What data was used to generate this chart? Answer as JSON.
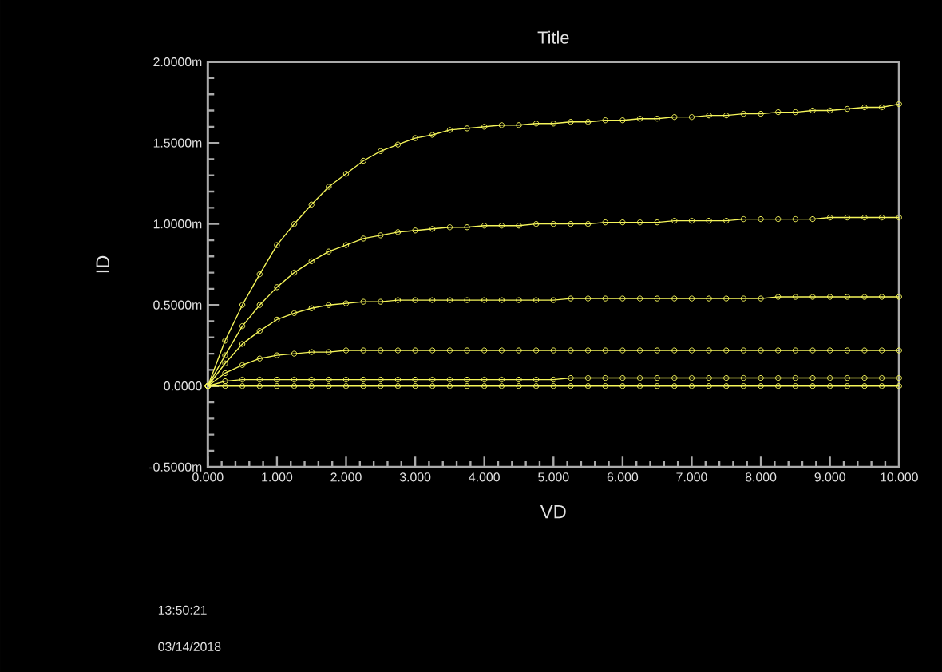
{
  "chart_data": {
    "type": "line",
    "title": "Title",
    "xlabel": "VD",
    "ylabel": "ID",
    "annotations": [
      "13:50:21",
      "03/14/2018"
    ],
    "x": [
      0,
      0.25,
      0.5,
      0.75,
      1,
      1.25,
      1.5,
      1.75,
      2,
      2.25,
      2.5,
      2.75,
      3,
      3.25,
      3.5,
      3.75,
      4,
      4.25,
      4.5,
      4.75,
      5,
      5.25,
      5.5,
      5.75,
      6,
      6.25,
      6.5,
      6.75,
      7,
      7.25,
      7.5,
      7.75,
      8,
      8.25,
      8.5,
      8.75,
      9,
      9.25,
      9.5,
      9.75,
      10
    ],
    "series": [
      {
        "color": "#f5f55a",
        "values": [
          0,
          0,
          0,
          0,
          0,
          0,
          0,
          0,
          0,
          0,
          0,
          0,
          0,
          0,
          0,
          0,
          0,
          0,
          0,
          0,
          0,
          0,
          0,
          0,
          0,
          0,
          0,
          0,
          0,
          0,
          0,
          0,
          0,
          0,
          0,
          0,
          0,
          0,
          0,
          0,
          0
        ]
      },
      {
        "color": "#f5f55a",
        "values": [
          0,
          0.03,
          0.04,
          0.04,
          0.04,
          0.04,
          0.04,
          0.04,
          0.04,
          0.04,
          0.04,
          0.04,
          0.04,
          0.04,
          0.04,
          0.04,
          0.04,
          0.04,
          0.04,
          0.04,
          0.04,
          0.05,
          0.05,
          0.05,
          0.05,
          0.05,
          0.05,
          0.05,
          0.05,
          0.05,
          0.05,
          0.05,
          0.05,
          0.05,
          0.05,
          0.05,
          0.05,
          0.05,
          0.05,
          0.05,
          0.05
        ]
      },
      {
        "color": "#f5f55a",
        "values": [
          0,
          0.08,
          0.13,
          0.17,
          0.19,
          0.2,
          0.21,
          0.21,
          0.22,
          0.22,
          0.22,
          0.22,
          0.22,
          0.22,
          0.22,
          0.22,
          0.22,
          0.22,
          0.22,
          0.22,
          0.22,
          0.22,
          0.22,
          0.22,
          0.22,
          0.22,
          0.22,
          0.22,
          0.22,
          0.22,
          0.22,
          0.22,
          0.22,
          0.22,
          0.22,
          0.22,
          0.22,
          0.22,
          0.22,
          0.22,
          0.22
        ]
      },
      {
        "color": "#f5f55a",
        "values": [
          0,
          0.14,
          0.26,
          0.34,
          0.41,
          0.45,
          0.48,
          0.5,
          0.51,
          0.52,
          0.52,
          0.53,
          0.53,
          0.53,
          0.53,
          0.53,
          0.53,
          0.53,
          0.53,
          0.53,
          0.53,
          0.54,
          0.54,
          0.54,
          0.54,
          0.54,
          0.54,
          0.54,
          0.54,
          0.54,
          0.54,
          0.54,
          0.54,
          0.55,
          0.55,
          0.55,
          0.55,
          0.55,
          0.55,
          0.55,
          0.55
        ]
      },
      {
        "color": "#f5f55a",
        "values": [
          0,
          0.19,
          0.37,
          0.5,
          0.61,
          0.7,
          0.77,
          0.83,
          0.87,
          0.91,
          0.93,
          0.95,
          0.96,
          0.97,
          0.98,
          0.98,
          0.99,
          0.99,
          0.99,
          1.0,
          1.0,
          1.0,
          1.0,
          1.01,
          1.01,
          1.01,
          1.01,
          1.02,
          1.02,
          1.02,
          1.02,
          1.03,
          1.03,
          1.03,
          1.03,
          1.03,
          1.04,
          1.04,
          1.04,
          1.04,
          1.04
        ]
      },
      {
        "color": "#f5f55a",
        "values": [
          0,
          0.28,
          0.5,
          0.69,
          0.87,
          1.0,
          1.12,
          1.23,
          1.31,
          1.39,
          1.45,
          1.49,
          1.53,
          1.55,
          1.58,
          1.59,
          1.6,
          1.61,
          1.61,
          1.62,
          1.62,
          1.63,
          1.63,
          1.64,
          1.64,
          1.65,
          1.65,
          1.66,
          1.66,
          1.67,
          1.67,
          1.68,
          1.68,
          1.69,
          1.69,
          1.7,
          1.7,
          1.71,
          1.72,
          1.72,
          1.74
        ]
      }
    ],
    "marker": "circle",
    "line_style": "solid",
    "xlim": [
      0,
      10
    ],
    "ylim": [
      -0.5,
      2
    ],
    "xticks": [
      {
        "value": 0,
        "label": "0.000"
      },
      {
        "value": 1,
        "label": "1.000"
      },
      {
        "value": 2,
        "label": "2.000"
      },
      {
        "value": 3,
        "label": "3.000"
      },
      {
        "value": 4,
        "label": "4.000"
      },
      {
        "value": 5,
        "label": "5.000"
      },
      {
        "value": 6,
        "label": "6.000"
      },
      {
        "value": 7,
        "label": "7.000"
      },
      {
        "value": 8,
        "label": "8.000"
      },
      {
        "value": 9,
        "label": "9.000"
      },
      {
        "value": 10,
        "label": "10.000"
      },
      {
        "value": 0.2,
        "label": null
      },
      {
        "value": 0.4,
        "label": null
      },
      {
        "value": 0.6,
        "label": null
      },
      {
        "value": 0.8,
        "label": null
      },
      {
        "value": 1.2,
        "label": null
      },
      {
        "value": 1.4,
        "label": null
      },
      {
        "value": 1.6,
        "label": null
      },
      {
        "value": 1.8,
        "label": null
      },
      {
        "value": 2.2,
        "label": null
      },
      {
        "value": 2.4,
        "label": null
      },
      {
        "value": 2.6,
        "label": null
      },
      {
        "value": 2.8,
        "label": null
      },
      {
        "value": 3.2,
        "label": null
      },
      {
        "value": 3.4,
        "label": null
      },
      {
        "value": 3.6,
        "label": null
      },
      {
        "value": 3.8,
        "label": null
      },
      {
        "value": 4.2,
        "label": null
      },
      {
        "value": 4.4,
        "label": null
      },
      {
        "value": 4.6,
        "label": null
      },
      {
        "value": 4.8,
        "label": null
      },
      {
        "value": 5.2,
        "label": null
      },
      {
        "value": 5.4,
        "label": null
      },
      {
        "value": 5.6,
        "label": null
      },
      {
        "value": 5.8,
        "label": null
      },
      {
        "value": 6.2,
        "label": null
      },
      {
        "value": 6.4,
        "label": null
      },
      {
        "value": 6.6,
        "label": null
      },
      {
        "value": 6.8,
        "label": null
      },
      {
        "value": 7.2,
        "label": null
      },
      {
        "value": 7.4,
        "label": null
      },
      {
        "value": 7.6,
        "label": null
      },
      {
        "value": 7.8,
        "label": null
      },
      {
        "value": 8.2,
        "label": null
      },
      {
        "value": 8.4,
        "label": null
      },
      {
        "value": 8.6,
        "label": null
      },
      {
        "value": 8.8,
        "label": null
      },
      {
        "value": 9.2,
        "label": null
      },
      {
        "value": 9.4,
        "label": null
      },
      {
        "value": 9.6,
        "label": null
      },
      {
        "value": 9.8,
        "label": null
      }
    ],
    "yticks": [
      {
        "value": -0.5,
        "label": "-0.5000m"
      },
      {
        "value": 0,
        "label": "0.0000"
      },
      {
        "value": 0.5,
        "label": "0.5000m"
      },
      {
        "value": 1,
        "label": "1.0000m"
      },
      {
        "value": 1.5,
        "label": "1.5000m"
      },
      {
        "value": 2,
        "label": "2.0000m"
      },
      {
        "value": -0.4,
        "label": null
      },
      {
        "value": -0.3,
        "label": null
      },
      {
        "value": -0.2,
        "label": null
      },
      {
        "value": -0.1,
        "label": null
      },
      {
        "value": 0.1,
        "label": null
      },
      {
        "value": 0.2,
        "label": null
      },
      {
        "value": 0.3,
        "label": null
      },
      {
        "value": 0.4,
        "label": null
      },
      {
        "value": 0.6,
        "label": null
      },
      {
        "value": 0.7,
        "label": null
      },
      {
        "value": 0.8,
        "label": null
      },
      {
        "value": 0.9,
        "label": null
      },
      {
        "value": 1.1,
        "label": null
      },
      {
        "value": 1.2,
        "label": null
      },
      {
        "value": 1.3,
        "label": null
      },
      {
        "value": 1.4,
        "label": null
      },
      {
        "value": 1.6,
        "label": null
      },
      {
        "value": 1.7,
        "label": null
      },
      {
        "value": 1.8,
        "label": null
      },
      {
        "value": 1.9,
        "label": null
      }
    ]
  }
}
